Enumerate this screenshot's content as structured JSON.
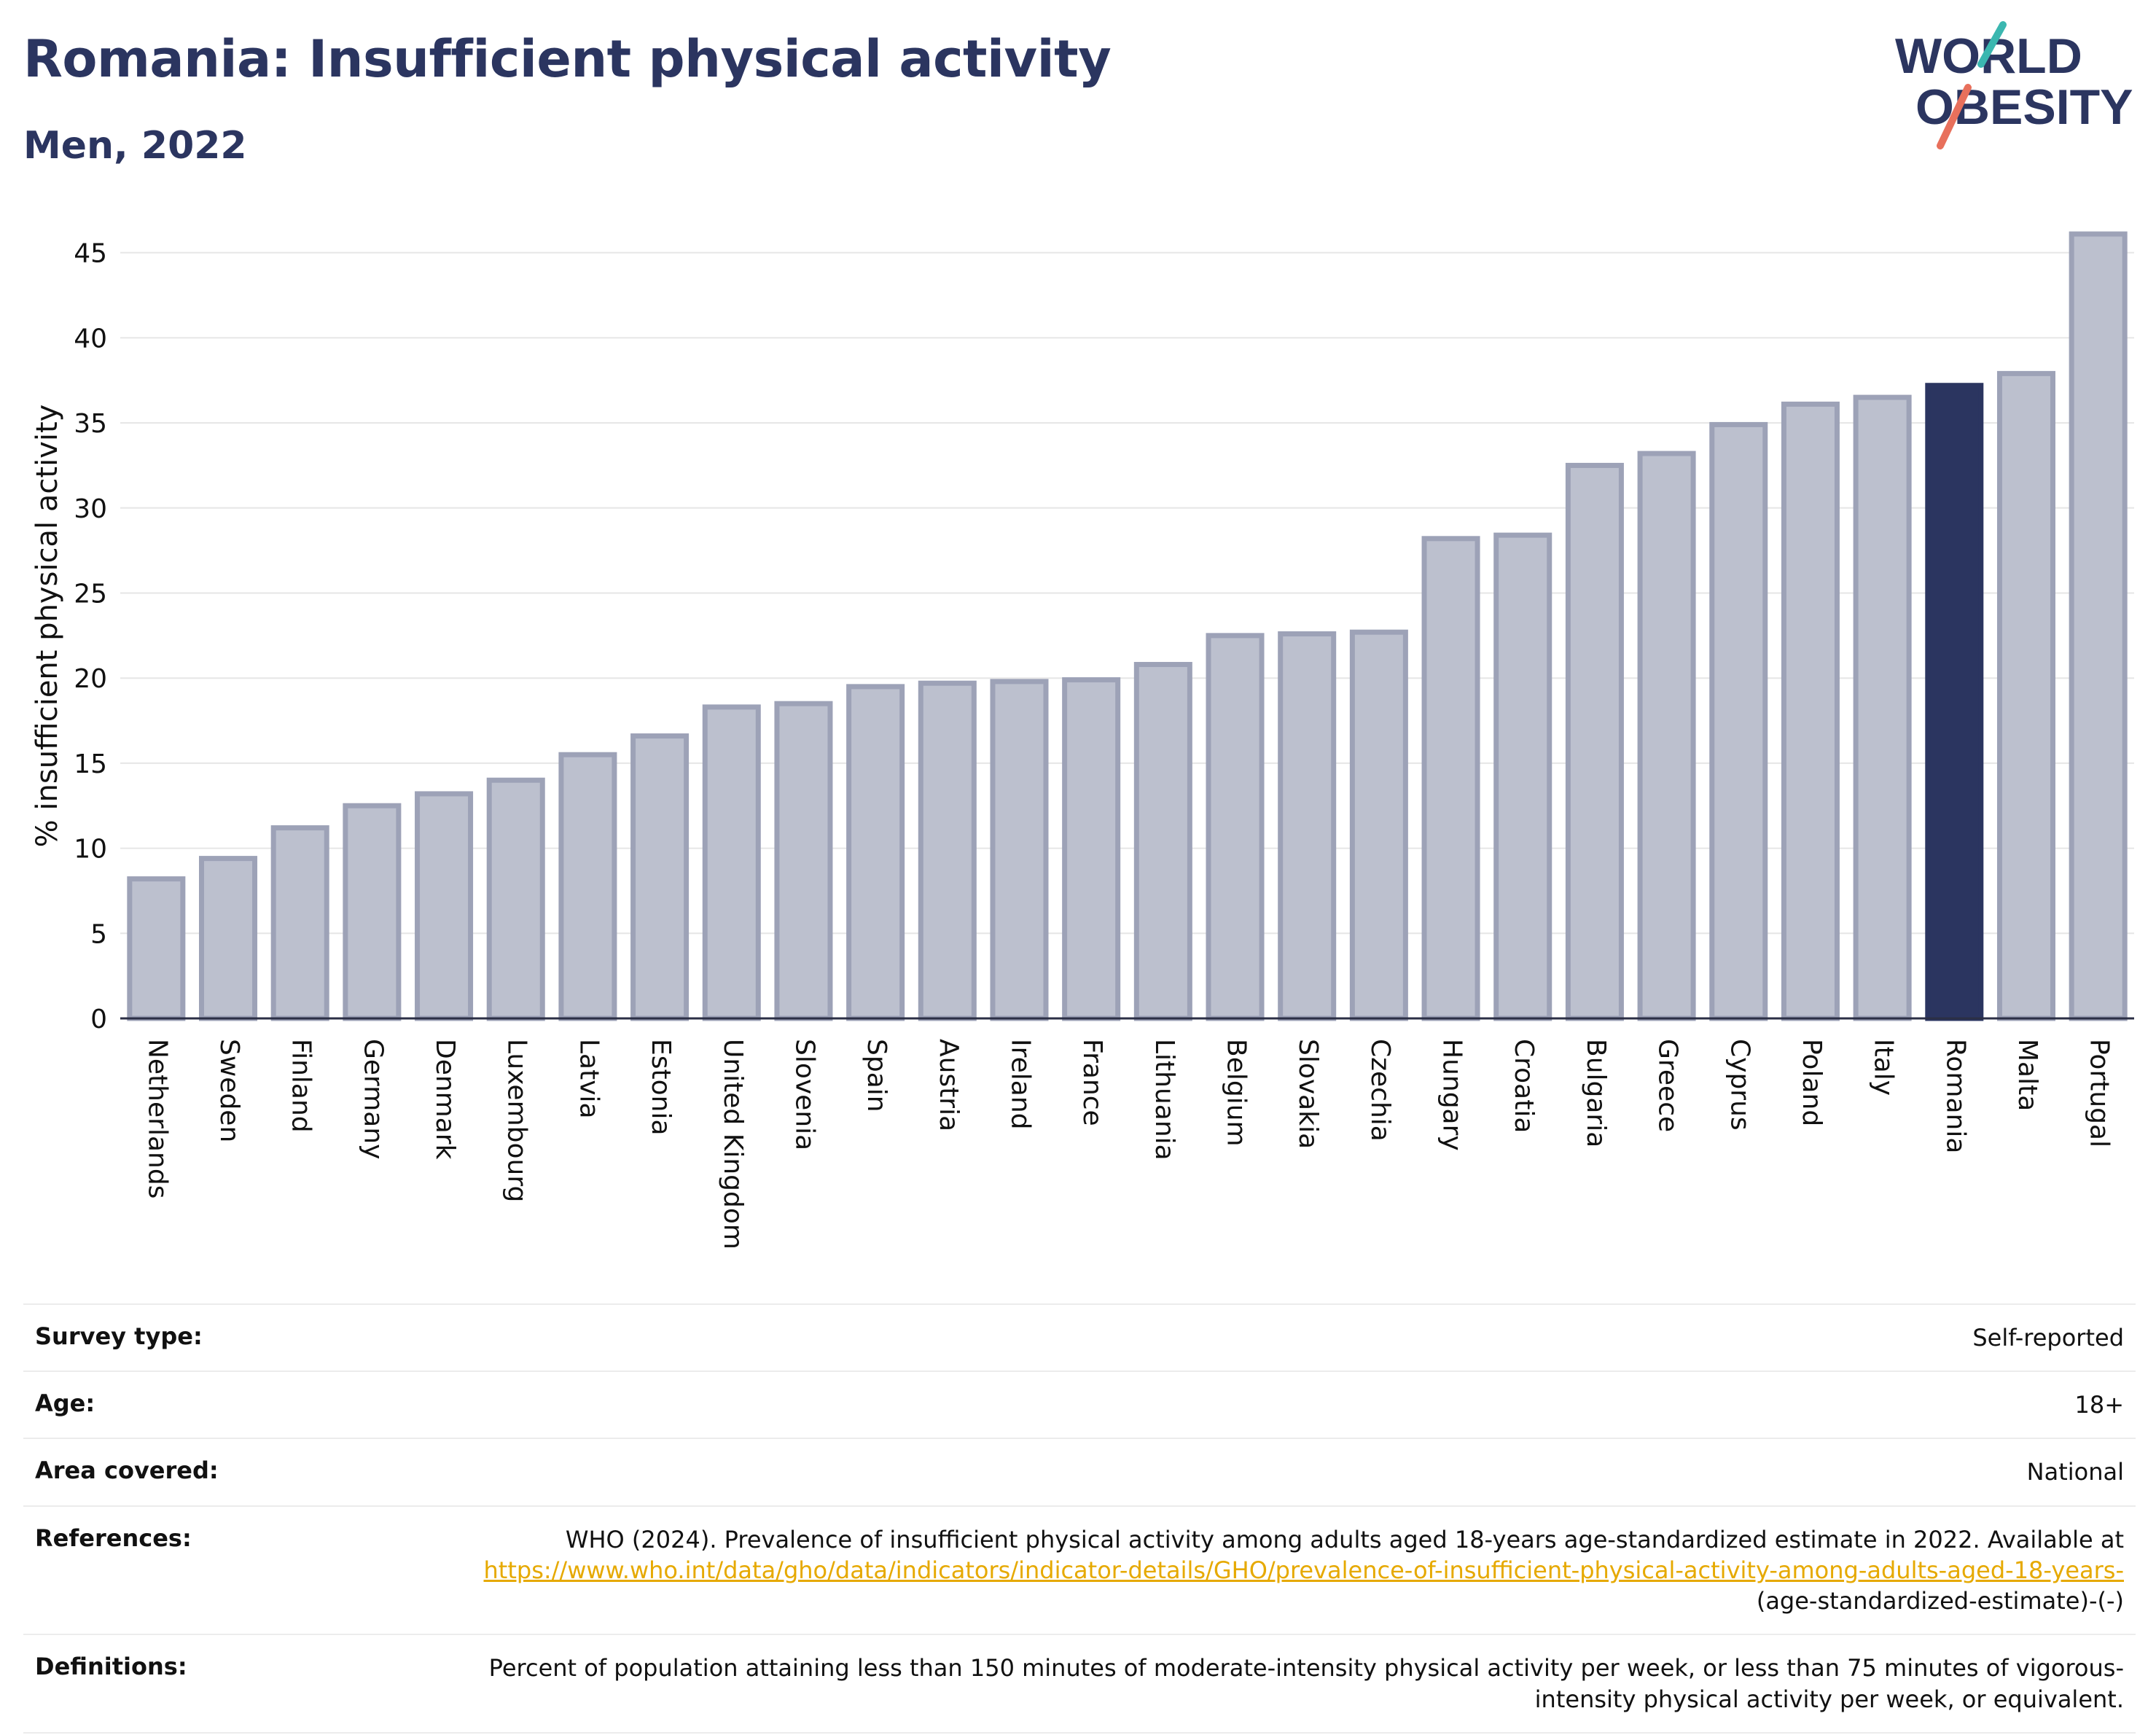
{
  "title": "Romania: Insufficient physical activity",
  "subtitle": "Men, 2022",
  "logo": {
    "line1": "WORLD",
    "line2": "OBESITY",
    "accent_colors": [
      "#3bb7b0",
      "#e8705c"
    ]
  },
  "colors": {
    "bar": "#bcc0ce",
    "bar_edge": "#9da2b7",
    "highlight": "#2b3560",
    "grid": "#e6e6e6",
    "axis": "#2b2f45",
    "link": "#e6a900"
  },
  "chart_data": {
    "type": "bar",
    "ylabel": "% insufficient physical activity",
    "ylim": [
      0,
      47
    ],
    "yticks": [
      0,
      5,
      10,
      15,
      20,
      25,
      30,
      35,
      40,
      45
    ],
    "grid": true,
    "highlight": "Romania",
    "categories": [
      "Netherlands",
      "Sweden",
      "Finland",
      "Germany",
      "Denmark",
      "Luxembourg",
      "Latvia",
      "Estonia",
      "United Kingdom",
      "Slovenia",
      "Spain",
      "Austria",
      "Ireland",
      "France",
      "Lithuania",
      "Belgium",
      "Slovakia",
      "Czechia",
      "Hungary",
      "Croatia",
      "Bulgaria",
      "Greece",
      "Cyprus",
      "Poland",
      "Italy",
      "Romania",
      "Malta",
      "Portugal"
    ],
    "values": [
      8.2,
      9.4,
      11.2,
      12.5,
      13.2,
      14.0,
      15.5,
      16.6,
      18.3,
      18.5,
      19.5,
      19.7,
      19.8,
      19.9,
      20.8,
      22.5,
      22.6,
      22.7,
      28.2,
      28.4,
      32.5,
      33.2,
      34.9,
      36.1,
      36.5,
      37.2,
      37.9,
      46.1
    ]
  },
  "info": [
    {
      "key": "Survey type:",
      "value": "Self-reported"
    },
    {
      "key": "Age:",
      "value": "18+"
    },
    {
      "key": "Area covered:",
      "value": "National"
    },
    {
      "key": "References:",
      "value": "WHO (2024). Prevalence of insufficient physical activity among adults aged 18-years age-standardized estimate in 2022. Available at",
      "link": "https://www.who.int/data/gho/data/indicators/indicator-details/GHO/prevalence-of-insufficient-physical-activity-among-adults-aged-18-years-",
      "suffix": "(age-standardized-estimate)-(-)"
    },
    {
      "key": "Definitions:",
      "value": "Percent of population attaining less than 150 minutes of moderate-intensity physical activity per week, or less than 75 minutes of vigorous-intensity physical activity per week, or equivalent."
    }
  ]
}
